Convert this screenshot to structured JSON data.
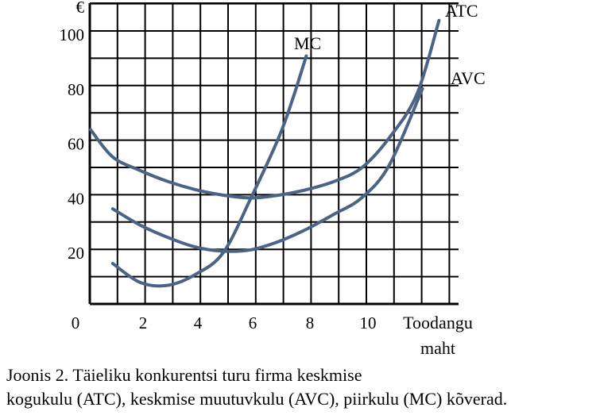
{
  "chart_data": {
    "type": "line",
    "y_axis_symbol": "€",
    "xlabel_line1": "Toodangu",
    "xlabel_line2": "maht",
    "y_ticks": [
      "20",
      "40",
      "60",
      "80",
      "100"
    ],
    "x_ticks": [
      "0",
      "2",
      "4",
      "6",
      "8",
      "10"
    ],
    "xlim": [
      0,
      13
    ],
    "ylim": [
      0,
      110
    ],
    "grid": true,
    "series": [
      {
        "name": "ATC",
        "color": "#4a6486",
        "x": [
          0.2,
          1,
          2,
          3,
          4,
          5,
          6,
          7,
          8,
          9,
          10,
          11,
          12,
          12.8
        ],
        "y": [
          65,
          55,
          50,
          46,
          43,
          41,
          40,
          41,
          43,
          46,
          51,
          62,
          78,
          105
        ]
      },
      {
        "name": "AVC",
        "color": "#4a6486",
        "x": [
          1,
          2,
          3,
          4,
          5,
          6,
          7,
          8,
          9,
          10,
          11,
          12.2
        ],
        "y": [
          36,
          30,
          25.5,
          22,
          20.5,
          21,
          24,
          28.5,
          34,
          40,
          52,
          80
        ]
      },
      {
        "name": "MC",
        "color": "#4a6486",
        "x": [
          1,
          2,
          3,
          4,
          5,
          6,
          7,
          7.5,
          8
        ],
        "y": [
          16,
          9,
          8,
          12,
          20,
          40,
          62,
          76,
          92
        ]
      }
    ]
  },
  "caption": {
    "line1": "Joonis 2. Täieliku konkurentsi turu firma keskmise",
    "line2": "kogukulu (ATC), keskmise muutuvkulu (AVC), piirkulu (MC) kõverad."
  }
}
